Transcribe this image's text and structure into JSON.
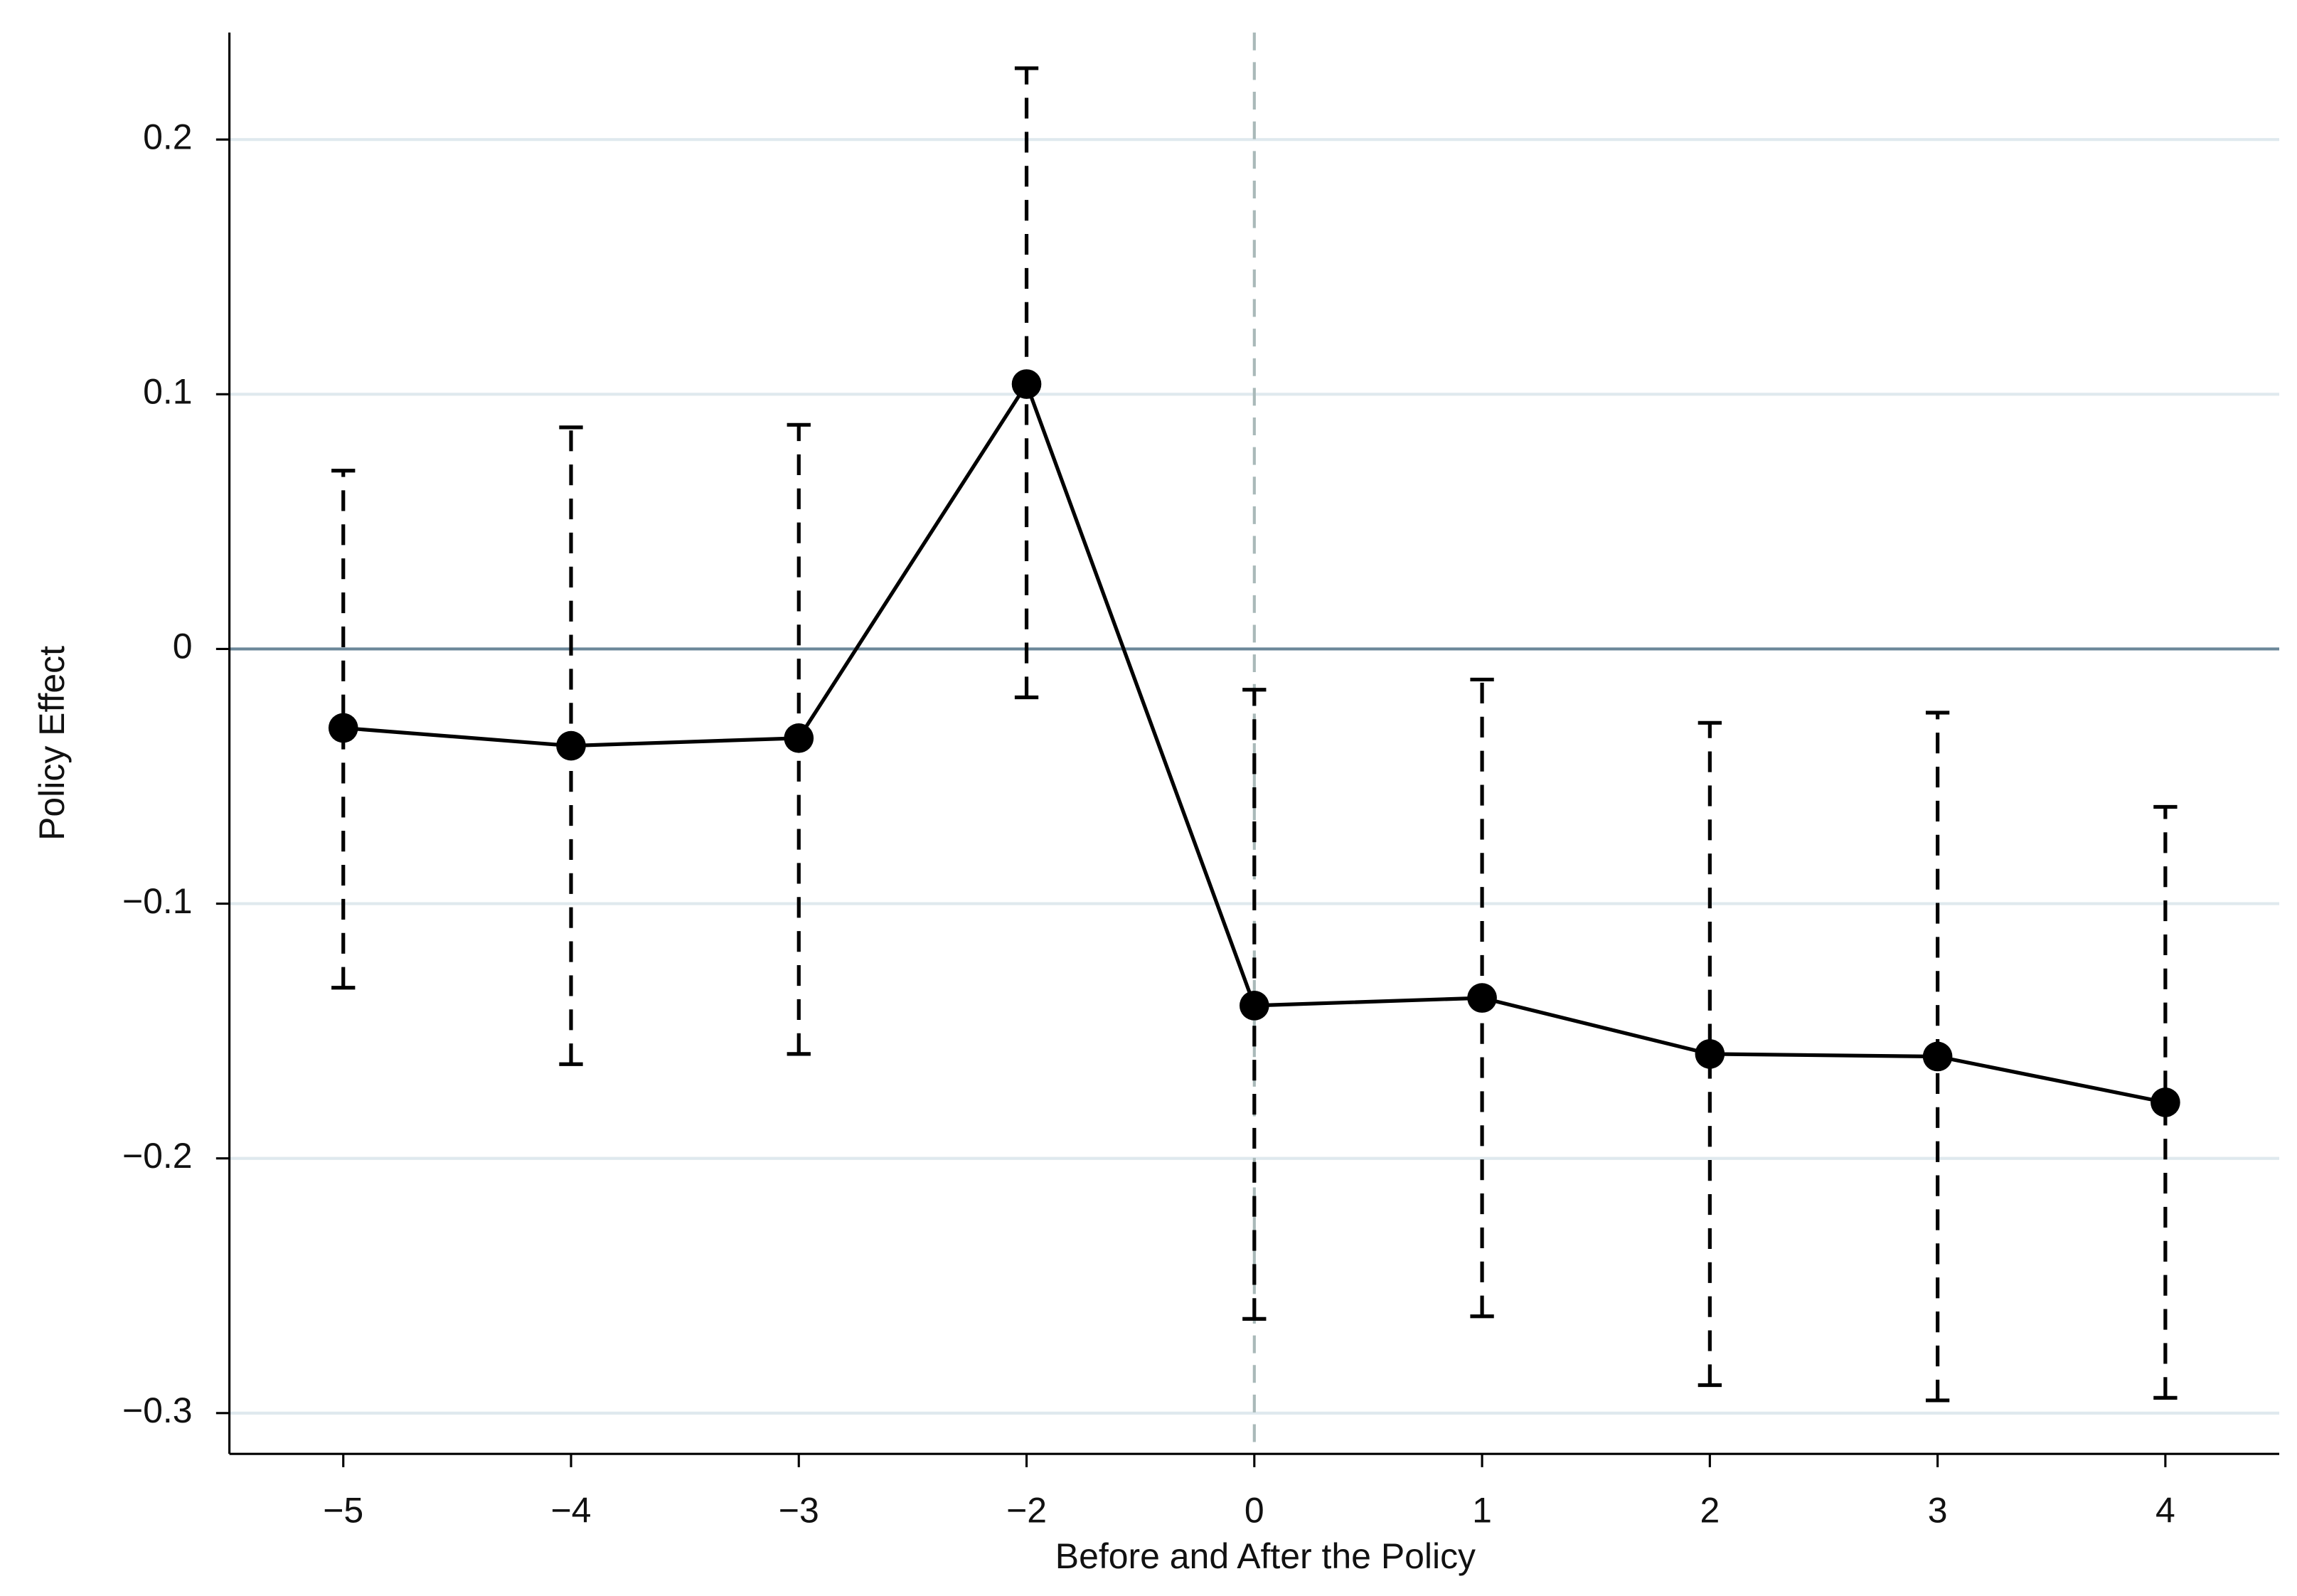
{
  "chart_data": {
    "type": "errorbar-line",
    "xlabel": "Before and After the Policy",
    "ylabel": "Policy Effect",
    "categories": [
      "−5",
      "−4",
      "−3",
      "−2",
      "0",
      "1",
      "2",
      "3",
      "4"
    ],
    "series": [
      {
        "color": "#000000",
        "values": [
          -0.031,
          -0.038,
          -0.035,
          0.104,
          -0.14,
          -0.137,
          -0.159,
          -0.16,
          -0.178
        ],
        "lower": [
          -0.133,
          -0.163,
          -0.159,
          -0.019,
          -0.263,
          -0.262,
          -0.289,
          -0.295,
          -0.294
        ],
        "upper": [
          0.07,
          0.087,
          0.088,
          0.228,
          -0.016,
          -0.012,
          -0.029,
          -0.025,
          -0.062
        ]
      }
    ],
    "ylim": [
      -0.316,
      0.242
    ],
    "yticks": [
      {
        "value": -0.3,
        "label": "−0.3"
      },
      {
        "value": -0.2,
        "label": "−0.2"
      },
      {
        "value": -0.1,
        "label": "−0.1"
      },
      0,
      0.1,
      0.2
    ],
    "grid": true,
    "reference_y": 0,
    "reference_x": "0"
  }
}
